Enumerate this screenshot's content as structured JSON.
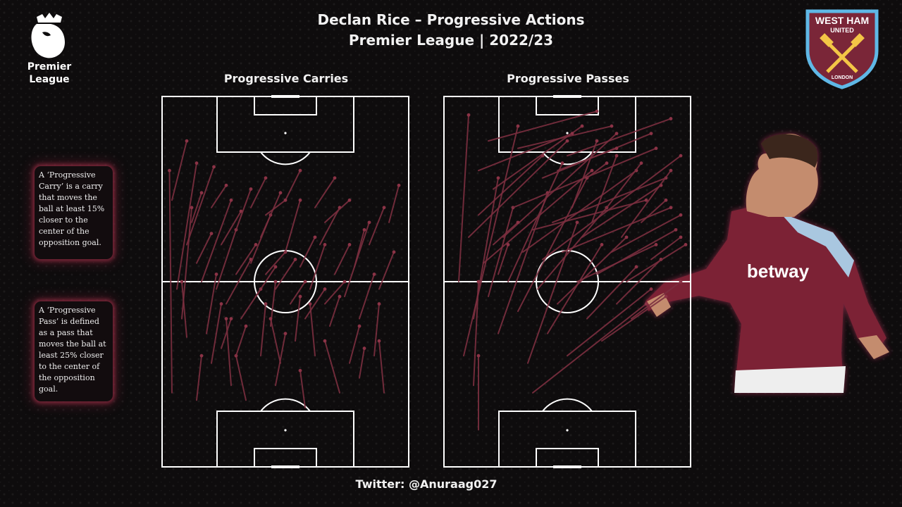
{
  "header": {
    "title_line1": "Declan Rice  – Progressive Actions",
    "title_line2": "Premier League | 2022/23"
  },
  "logos": {
    "league_logo": {
      "icon": "premier-league-lion-icon",
      "text_line1": "Premier",
      "text_line2": "League"
    },
    "club_crest": {
      "icon": "west-ham-crest-icon",
      "text_top": "WEST HAM",
      "text_sub": "UNITED",
      "text_bottom": "LONDON"
    }
  },
  "player_photo": {
    "icon": "player-photo",
    "shirt_sponsor": "betway"
  },
  "info_boxes": {
    "carry": "A ‘Progressive Carry’ is a carry that moves the ball at least 15% closer to the center of the opposition  goal.",
    "pass": "A ‘Progressive Pass’ is defined as a pass that moves the ball at least 25% closer to the center of the opposition  goal."
  },
  "footer": {
    "credit": "Twitter: @Anuraag027"
  },
  "colors": {
    "arrow": "#7b2f3f",
    "arrow_head": "#8b3346",
    "pitch_lines": "#ffffff",
    "background": "#0e0c0d",
    "glow": "#8a2c44"
  },
  "chart_data": [
    {
      "type": "scatter",
      "title": "Progressive Carries",
      "xlabel": "",
      "ylabel": "",
      "xlim": [
        0,
        100
      ],
      "ylim": [
        0,
        100
      ],
      "attacking_direction": "up",
      "grid": false,
      "series": [
        {
          "segments": [
            [
              4,
              20,
              3,
              80
            ],
            [
              4,
              72,
              10,
              88
            ],
            [
              6,
              48,
              14,
              82
            ],
            [
              8,
              40,
              12,
              70
            ],
            [
              10,
              60,
              21,
              81
            ],
            [
              12,
              66,
              16,
              74
            ],
            [
              14,
              55,
              20,
              63
            ],
            [
              10,
              35,
              8,
              50
            ],
            [
              16,
              50,
              28,
              72
            ],
            [
              18,
              36,
              22,
              52
            ],
            [
              20,
              28,
              24,
              44
            ],
            [
              22,
              48,
              30,
              64
            ],
            [
              24,
              60,
              32,
              69
            ],
            [
              26,
              44,
              36,
              56
            ],
            [
              28,
              22,
              26,
              40
            ],
            [
              30,
              52,
              38,
              60
            ],
            [
              30,
              64,
              36,
              75
            ],
            [
              32,
              40,
              40,
              48
            ],
            [
              34,
              18,
              30,
              30
            ],
            [
              36,
              55,
              44,
              68
            ],
            [
              38,
              46,
              46,
              54
            ],
            [
              40,
              30,
              42,
              44
            ],
            [
              40,
              62,
              48,
              74
            ],
            [
              42,
              52,
              50,
              58
            ],
            [
              44,
              38,
              46,
              50
            ],
            [
              46,
              48,
              54,
              56
            ],
            [
              48,
              28,
              44,
              40
            ],
            [
              50,
              58,
              56,
              72
            ],
            [
              52,
              44,
              58,
              50
            ],
            [
              54,
              34,
              56,
              46
            ],
            [
              56,
              54,
              62,
              62
            ],
            [
              58,
              40,
              66,
              48
            ],
            [
              60,
              48,
              66,
              60
            ],
            [
              62,
              30,
              60,
              44
            ],
            [
              64,
              60,
              72,
              70
            ],
            [
              66,
              44,
              74,
              50
            ],
            [
              68,
              38,
              72,
              46
            ],
            [
              70,
              52,
              76,
              60
            ],
            [
              72,
              20,
              66,
              34
            ],
            [
              74,
              46,
              84,
              66
            ],
            [
              76,
              28,
              80,
              38
            ],
            [
              78,
              54,
              82,
              64
            ],
            [
              80,
              40,
              86,
              52
            ],
            [
              84,
              60,
              90,
              70
            ],
            [
              86,
              30,
              88,
              44
            ],
            [
              88,
              48,
              94,
              58
            ],
            [
              90,
              20,
              88,
              34
            ],
            [
              92,
              66,
              96,
              76
            ],
            [
              62,
              70,
              70,
              78
            ],
            [
              50,
              72,
              56,
              80
            ],
            [
              20,
              70,
              26,
              76
            ],
            [
              36,
              70,
              42,
              78
            ],
            [
              24,
              32,
              28,
              40
            ],
            [
              46,
              22,
              50,
              36
            ],
            [
              58,
              16,
              56,
              26
            ],
            [
              14,
              18,
              16,
              30
            ],
            [
              30,
              30,
              34,
              38
            ],
            [
              42,
              68,
              50,
              72
            ],
            [
              66,
              66,
              76,
              72
            ],
            [
              80,
              24,
              82,
              32
            ]
          ]
        }
      ]
    },
    {
      "type": "scatter",
      "title": "Progressive Passes",
      "xlabel": "",
      "ylabel": "",
      "xlim": [
        0,
        100
      ],
      "ylim": [
        0,
        100
      ],
      "attacking_direction": "up",
      "grid": false,
      "series": [
        {
          "segments": [
            [
              8,
              30,
              30,
              92
            ],
            [
              6,
              50,
              10,
              95
            ],
            [
              10,
              62,
              50,
              88
            ],
            [
              12,
              40,
              22,
              78
            ],
            [
              14,
              68,
              40,
              84
            ],
            [
              16,
              55,
              60,
              80
            ],
            [
              18,
              46,
              28,
              70
            ],
            [
              20,
              75,
              56,
              92
            ],
            [
              22,
              36,
              42,
              74
            ],
            [
              24,
              62,
              70,
              90
            ],
            [
              26,
              50,
              48,
              82
            ],
            [
              28,
              70,
              86,
              86
            ],
            [
              30,
              42,
              58,
              78
            ],
            [
              32,
              58,
              78,
              80
            ],
            [
              34,
              28,
              54,
              66
            ],
            [
              36,
              64,
              82,
              72
            ],
            [
              38,
              48,
              66,
              70
            ],
            [
              40,
              56,
              96,
              84
            ],
            [
              42,
              36,
              64,
              60
            ],
            [
              44,
              66,
              90,
              78
            ],
            [
              46,
              44,
              74,
              62
            ],
            [
              48,
              58,
              92,
              70
            ],
            [
              50,
              30,
              84,
              48
            ],
            [
              52,
              70,
              62,
              88
            ],
            [
              54,
              50,
              86,
              60
            ],
            [
              56,
              62,
              88,
              76
            ],
            [
              58,
              40,
              78,
              54
            ],
            [
              60,
              66,
              70,
              84
            ],
            [
              62,
              52,
              94,
              64
            ],
            [
              64,
              34,
              90,
              46
            ],
            [
              66,
              70,
              80,
              82
            ],
            [
              68,
              58,
              96,
              68
            ],
            [
              70,
              44,
              88,
              56
            ],
            [
              72,
              62,
              92,
              80
            ],
            [
              74,
              50,
              98,
              60
            ],
            [
              12,
              22,
              14,
              50
            ],
            [
              20,
              60,
              30,
              66
            ],
            [
              76,
              40,
              96,
              50
            ],
            [
              80,
              66,
              90,
              72
            ],
            [
              84,
              56,
              96,
              62
            ],
            [
              14,
              80,
              52,
              90
            ],
            [
              18,
              88,
              62,
              96
            ],
            [
              30,
              86,
              68,
              92
            ],
            [
              40,
              78,
              84,
              90
            ],
            [
              50,
              84,
              92,
              94
            ],
            [
              22,
              52,
              26,
              60
            ],
            [
              36,
              20,
              82,
              44
            ],
            [
              14,
              10,
              14,
              30
            ],
            [
              46,
              80,
              70,
              86
            ],
            [
              58,
              78,
              66,
              82
            ]
          ]
        }
      ]
    }
  ]
}
